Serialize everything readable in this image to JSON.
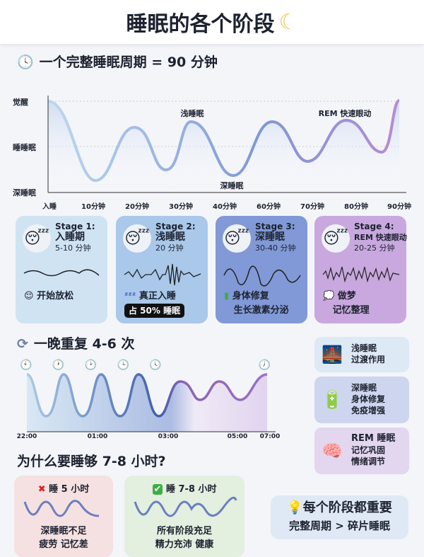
{
  "title": "睡眠的各个阶段",
  "title_icon": "crescent-moon-icon",
  "cycle": {
    "heading": "一个完整睡眠周期 = 90 分钟",
    "icon": "clock-icon",
    "y_labels": [
      "觉醒",
      "睡睡眠",
      "深睡眠"
    ],
    "x_labels": [
      "入睡",
      "10分钟",
      "20分钟",
      "30分钟",
      "40分钟",
      "60分钟",
      "70分钟",
      "80分钟",
      "90分钟"
    ],
    "annotations": [
      "浅睡眠",
      "深睡眠",
      "REM 快速眼动"
    ]
  },
  "stages": [
    {
      "label": "Stage 1:",
      "name": "入睡期",
      "duration": "5-10 分钟",
      "icon": "relieved-face-icon",
      "desc1": "开始放松",
      "desc2": "",
      "color": "#cfe3f3"
    },
    {
      "label": "Stage 2:",
      "name": "浅睡眠",
      "duration": "20 分钟",
      "icon": "zzz-icon",
      "desc1": "真正入睡",
      "desc2": "占 50% 睡眠",
      "color": "#a9c8ea"
    },
    {
      "label": "Stage 3:",
      "name": "深睡眠",
      "duration": "30-40 分钟",
      "icon": "battery-icon",
      "desc1": "身体修复",
      "desc2": "生长激素分泌",
      "color": "#8199d6"
    },
    {
      "label": "Stage 4:",
      "name": "REM 快速眼动",
      "duration": "20-25 分钟",
      "icon": "thought-bubble-icon",
      "desc1": "做梦",
      "desc2": "记忆整理",
      "color": "#c8a8de"
    }
  ],
  "night": {
    "heading": "一晚重复 4-6 次",
    "icon": "repeat-icon",
    "times": [
      "22:00",
      "01:00",
      "03:00",
      "05:00",
      "07:00"
    ]
  },
  "benefits": [
    {
      "title": "浅睡眠",
      "lines": [
        "过渡作用"
      ],
      "icon": "bridge-icon"
    },
    {
      "title": "深睡眠",
      "lines": [
        "身体修复",
        "免疫增强"
      ],
      "icon": "battery-charging-icon"
    },
    {
      "title": "REM 睡眠",
      "lines": [
        "记忆巩固",
        "情绪调节"
      ],
      "icon": "brain-icon"
    }
  ],
  "why": {
    "heading": "为什么要睡够 7-8 小时?",
    "bad": {
      "title": "睡 5 小时",
      "l1": "深睡眠不足",
      "l2": "疲劳 记忆差",
      "icon": "cross-mark-icon"
    },
    "good": {
      "title": "睡 7-8 小时",
      "l1": "所有阶段充足",
      "l2": "精力充沛 健康",
      "icon": "check-mark-icon"
    }
  },
  "tip": {
    "line1": "每个阶段都重要",
    "line2": "完整周期 > 碎片睡眠",
    "icon": "light-bulb-icon"
  }
}
